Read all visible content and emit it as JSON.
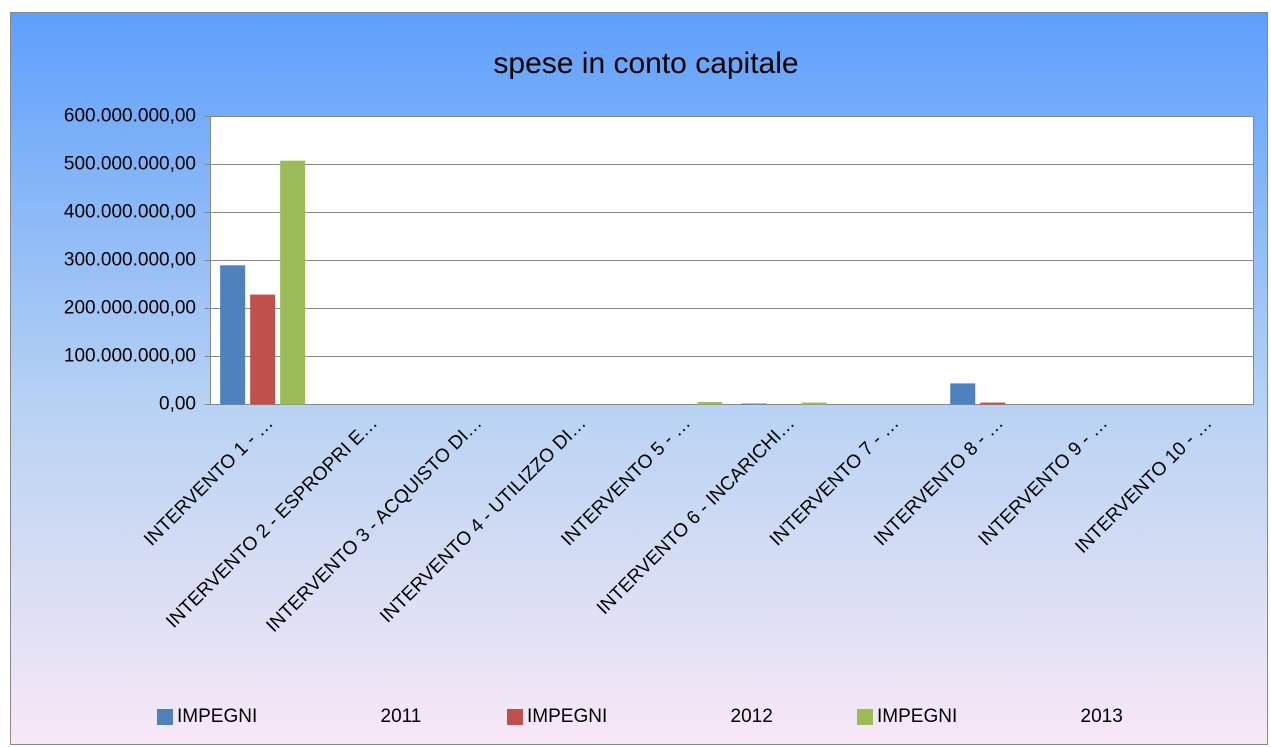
{
  "chart_data": {
    "type": "bar",
    "title": "spese in conto capitale",
    "categories": [
      "INTERVENTO 1 - …",
      "INTERVENTO 2 - ESPROPRI E…",
      "INTERVENTO 3 - ACQUISTO DI…",
      "INTERVENTO 4 - UTILIZZO DI…",
      "INTERVENTO 5 - …",
      "INTERVENTO 6 - INCARICHI…",
      "INTERVENTO 7 - …",
      "INTERVENTO 8 - …",
      "INTERVENTO 9 - …",
      "INTERVENTO 10 - …"
    ],
    "series": [
      {
        "name": "IMPEGNI 2011",
        "color": "#4f81bd",
        "values": [
          290000000,
          0,
          0,
          0,
          0,
          2000000,
          0,
          44000000,
          0,
          0
        ]
      },
      {
        "name": "IMPEGNI 2012",
        "color": "#c0504d",
        "values": [
          229000000,
          0,
          0,
          0,
          0,
          0,
          0,
          4000000,
          0,
          0
        ]
      },
      {
        "name": "IMPEGNI 2013",
        "color": "#9bbb59",
        "values": [
          508000000,
          0,
          0,
          0,
          5000000,
          4000000,
          0,
          0,
          0,
          0
        ]
      }
    ],
    "ylim": [
      0,
      600000000
    ],
    "yticks": [
      {
        "value": 0,
        "label": "0,00"
      },
      {
        "value": 100000000,
        "label": "100.000.000,00"
      },
      {
        "value": 200000000,
        "label": "200.000.000,00"
      },
      {
        "value": 300000000,
        "label": "300.000.000,00"
      },
      {
        "value": 400000000,
        "label": "400.000.000,00"
      },
      {
        "value": 500000000,
        "label": "500.000.000,00"
      },
      {
        "value": 600000000,
        "label": "600.000.000,00"
      }
    ],
    "grid": true,
    "legend": "bottom"
  }
}
